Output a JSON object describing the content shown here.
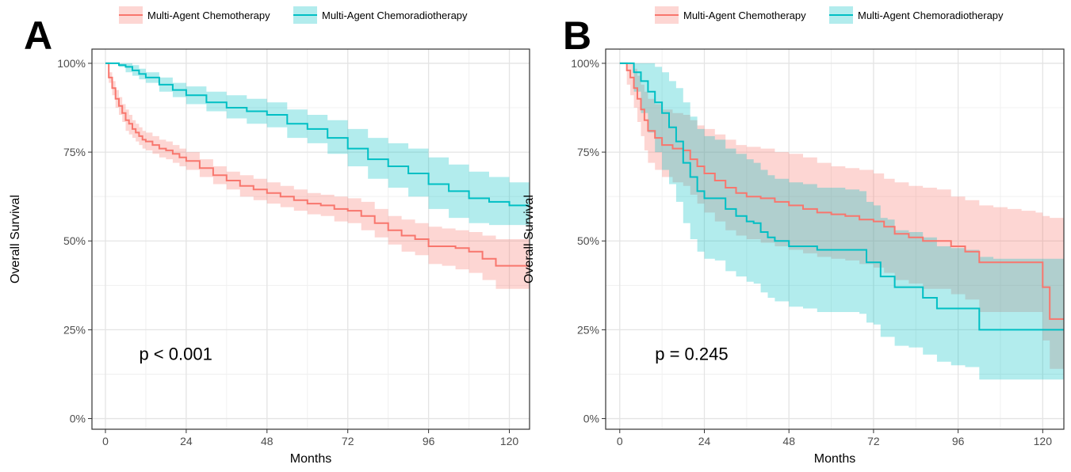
{
  "chart_data": [
    {
      "type": "line",
      "subtype": "kaplan-meier",
      "panel_label": "A",
      "annotation": "p < 0.001",
      "xlabel": "Months",
      "ylabel": "Overall Survival",
      "xlim": [
        -4,
        126
      ],
      "ylim": [
        -3,
        104
      ],
      "xticks": [
        0,
        24,
        48,
        72,
        96,
        120
      ],
      "xtick_labels": [
        "0",
        "24",
        "48",
        "72",
        "96",
        "120"
      ],
      "yticks": [
        0,
        25,
        50,
        75,
        100
      ],
      "ytick_labels": [
        "0%",
        "25%",
        "50%",
        "75%",
        "100%"
      ],
      "grid": true,
      "legend_position": "top",
      "series": [
        {
          "name": "Multi-Agent Chemotherapy",
          "color": "#F8766D",
          "x": [
            0,
            1,
            2,
            3,
            4,
            5,
            6,
            7,
            8,
            9,
            10,
            11,
            12,
            14,
            16,
            18,
            20,
            22,
            24,
            28,
            32,
            36,
            40,
            44,
            48,
            52,
            56,
            60,
            64,
            68,
            72,
            76,
            80,
            84,
            88,
            92,
            96,
            100,
            104,
            108,
            112,
            116,
            120,
            126
          ],
          "y": [
            100,
            96,
            93,
            90,
            88,
            86,
            84,
            83,
            81.5,
            80.5,
            79.5,
            78.5,
            78,
            77,
            76,
            75.5,
            74.5,
            73.5,
            72.5,
            70.5,
            68.5,
            67,
            65.5,
            64.5,
            63.5,
            62.5,
            61.5,
            60.5,
            60,
            59,
            58.5,
            57,
            55,
            53,
            51.5,
            50.5,
            48.5,
            48.5,
            48,
            47,
            45,
            43,
            43,
            43
          ],
          "ci_upper": [
            100,
            97.5,
            95,
            92.5,
            90.5,
            88.5,
            87,
            85.5,
            84,
            83,
            82,
            81,
            80.5,
            79.5,
            78.5,
            78,
            77,
            76,
            75,
            73,
            71,
            69.5,
            68.5,
            67.5,
            66.5,
            65.5,
            64.5,
            63.5,
            63,
            62.5,
            62,
            61,
            59,
            57,
            56,
            55,
            54,
            53.5,
            53,
            52.5,
            51.5,
            50.5,
            50.5,
            50.5
          ],
          "ci_lower": [
            100,
            94.5,
            91,
            87.5,
            85.5,
            83.5,
            81,
            80,
            79,
            78,
            77,
            76,
            75.5,
            74.5,
            73.5,
            73,
            72,
            71,
            70,
            68,
            66,
            64.5,
            62.5,
            61.5,
            60.5,
            59.5,
            58.5,
            57.5,
            57,
            55.5,
            55,
            53,
            51,
            49,
            47,
            46,
            43.5,
            43,
            42,
            41,
            39,
            36.5,
            36.5,
            36.5
          ]
        },
        {
          "name": "Multi-Agent Chemoradiotherapy",
          "color": "#00BFC4",
          "x": [
            0,
            2,
            4,
            6,
            8,
            10,
            12,
            16,
            20,
            24,
            30,
            36,
            42,
            48,
            54,
            60,
            66,
            72,
            78,
            84,
            90,
            96,
            102,
            108,
            114,
            120,
            126
          ],
          "y": [
            100,
            100,
            99.5,
            99,
            98,
            97,
            96,
            94,
            92.5,
            91,
            89,
            87.5,
            86.5,
            85.5,
            83,
            81.5,
            79,
            76,
            73,
            71,
            69,
            66,
            64,
            62,
            61,
            60,
            60
          ],
          "ci_upper": [
            100,
            100,
            100,
            100,
            99.5,
            98.5,
            97.5,
            96,
            94.5,
            93.5,
            92,
            91,
            90,
            89,
            87,
            85.5,
            84,
            81.5,
            79,
            77.5,
            76,
            73.5,
            71.5,
            69.5,
            68,
            66.5,
            66.5
          ],
          "ci_lower": [
            100,
            100,
            99,
            97.5,
            96.5,
            95.5,
            94.5,
            92,
            90.5,
            88.5,
            86.5,
            84.5,
            83,
            82,
            79,
            77.5,
            74.5,
            71,
            67.5,
            65,
            62.5,
            59,
            56.5,
            55,
            54.5,
            54.5,
            54.5
          ]
        }
      ]
    },
    {
      "type": "line",
      "subtype": "kaplan-meier",
      "panel_label": "B",
      "annotation": "p = 0.245",
      "xlabel": "Months",
      "ylabel": "Overall Survival",
      "xlim": [
        -4,
        126
      ],
      "ylim": [
        -3,
        104
      ],
      "xticks": [
        0,
        24,
        48,
        72,
        96,
        120
      ],
      "xtick_labels": [
        "0",
        "24",
        "48",
        "72",
        "96",
        "120"
      ],
      "yticks": [
        0,
        25,
        50,
        75,
        100
      ],
      "ytick_labels": [
        "0%",
        "25%",
        "50%",
        "75%",
        "100%"
      ],
      "grid": true,
      "legend_position": "top",
      "series": [
        {
          "name": "Multi-Agent Chemotherapy",
          "color": "#F8766D",
          "x": [
            0,
            2,
            3,
            4,
            5,
            6,
            7,
            8,
            10,
            12,
            15,
            18,
            20,
            22,
            24,
            27,
            30,
            33,
            36,
            40,
            44,
            48,
            52,
            56,
            60,
            64,
            68,
            72,
            75,
            78,
            82,
            86,
            90,
            94,
            98,
            102,
            106,
            110,
            114,
            118,
            120,
            122,
            126
          ],
          "y": [
            100,
            98,
            96,
            93,
            90,
            87,
            84,
            81,
            79,
            77,
            76,
            75.5,
            73,
            71,
            69,
            67,
            65,
            63.5,
            62.5,
            62,
            61,
            60,
            59,
            58,
            57.5,
            57,
            56,
            55.5,
            54,
            52,
            51,
            50,
            50,
            48.5,
            47,
            44,
            44,
            44,
            44,
            44,
            37,
            28,
            28
          ],
          "ci_upper": [
            100,
            100,
            100,
            98.5,
            96.5,
            94,
            92,
            90,
            88.5,
            87,
            86,
            85.5,
            84,
            82.5,
            81.5,
            80,
            78.5,
            77,
            76.5,
            76,
            75,
            74.5,
            73.5,
            72,
            71,
            70.5,
            70,
            69,
            67.5,
            66.5,
            65.5,
            65,
            64.5,
            62.5,
            61.5,
            60,
            59.5,
            59,
            58.5,
            58,
            57,
            56.5,
            56.5
          ],
          "ci_lower": [
            100,
            94,
            91,
            87.5,
            83.5,
            79.5,
            75.5,
            72,
            70,
            68,
            66.5,
            65.5,
            63,
            60.5,
            58,
            55.5,
            53,
            51.5,
            50.5,
            49.5,
            48.5,
            47.5,
            46.5,
            45.5,
            45,
            44.5,
            43.5,
            42.5,
            41,
            39,
            38,
            36.5,
            36.5,
            35,
            33.5,
            30,
            30,
            30,
            30,
            30,
            22,
            14,
            14
          ]
        },
        {
          "name": "Multi-Agent Chemoradiotherapy",
          "color": "#00BFC4",
          "x": [
            0,
            2,
            4,
            6,
            8,
            10,
            12,
            14,
            16,
            18,
            20,
            22,
            24,
            27,
            30,
            33,
            36,
            38,
            40,
            42,
            44,
            48,
            52,
            56,
            60,
            64,
            68,
            70,
            72,
            74,
            76,
            78,
            82,
            86,
            90,
            94,
            98,
            102,
            106,
            110,
            114,
            118,
            120,
            126
          ],
          "y": [
            100,
            100,
            97.5,
            95,
            92,
            89,
            86,
            82,
            78,
            72,
            68,
            64,
            62,
            62,
            59,
            57,
            55.5,
            55,
            52.5,
            51,
            50,
            48.5,
            48.5,
            47.5,
            47.5,
            47.5,
            47.5,
            44,
            44,
            40,
            40,
            37,
            37,
            34,
            31,
            31,
            31,
            25,
            25,
            25,
            25,
            25,
            25,
            25
          ],
          "ci_upper": [
            100,
            100,
            100,
            100,
            100,
            99,
            97.5,
            95,
            93,
            89,
            85,
            81.5,
            79.5,
            78.5,
            76,
            74.5,
            73,
            72,
            70,
            68.5,
            67.5,
            66.5,
            66,
            65,
            65,
            64.5,
            64,
            61,
            60,
            56.5,
            56,
            53,
            52.5,
            51,
            48.5,
            48,
            47.5,
            45.5,
            45,
            45,
            45,
            45,
            45,
            45
          ],
          "ci_lower": [
            100,
            100,
            92,
            86,
            80.5,
            75,
            70,
            66,
            61,
            55,
            50.5,
            47,
            45,
            44.5,
            41.5,
            40,
            38.5,
            38,
            35.5,
            34,
            33,
            31.5,
            31,
            30,
            30,
            30,
            29.5,
            27,
            26.5,
            23,
            23,
            20.5,
            20,
            18,
            16,
            15,
            14.5,
            11,
            11,
            11,
            11,
            11,
            11,
            11
          ]
        }
      ]
    }
  ]
}
